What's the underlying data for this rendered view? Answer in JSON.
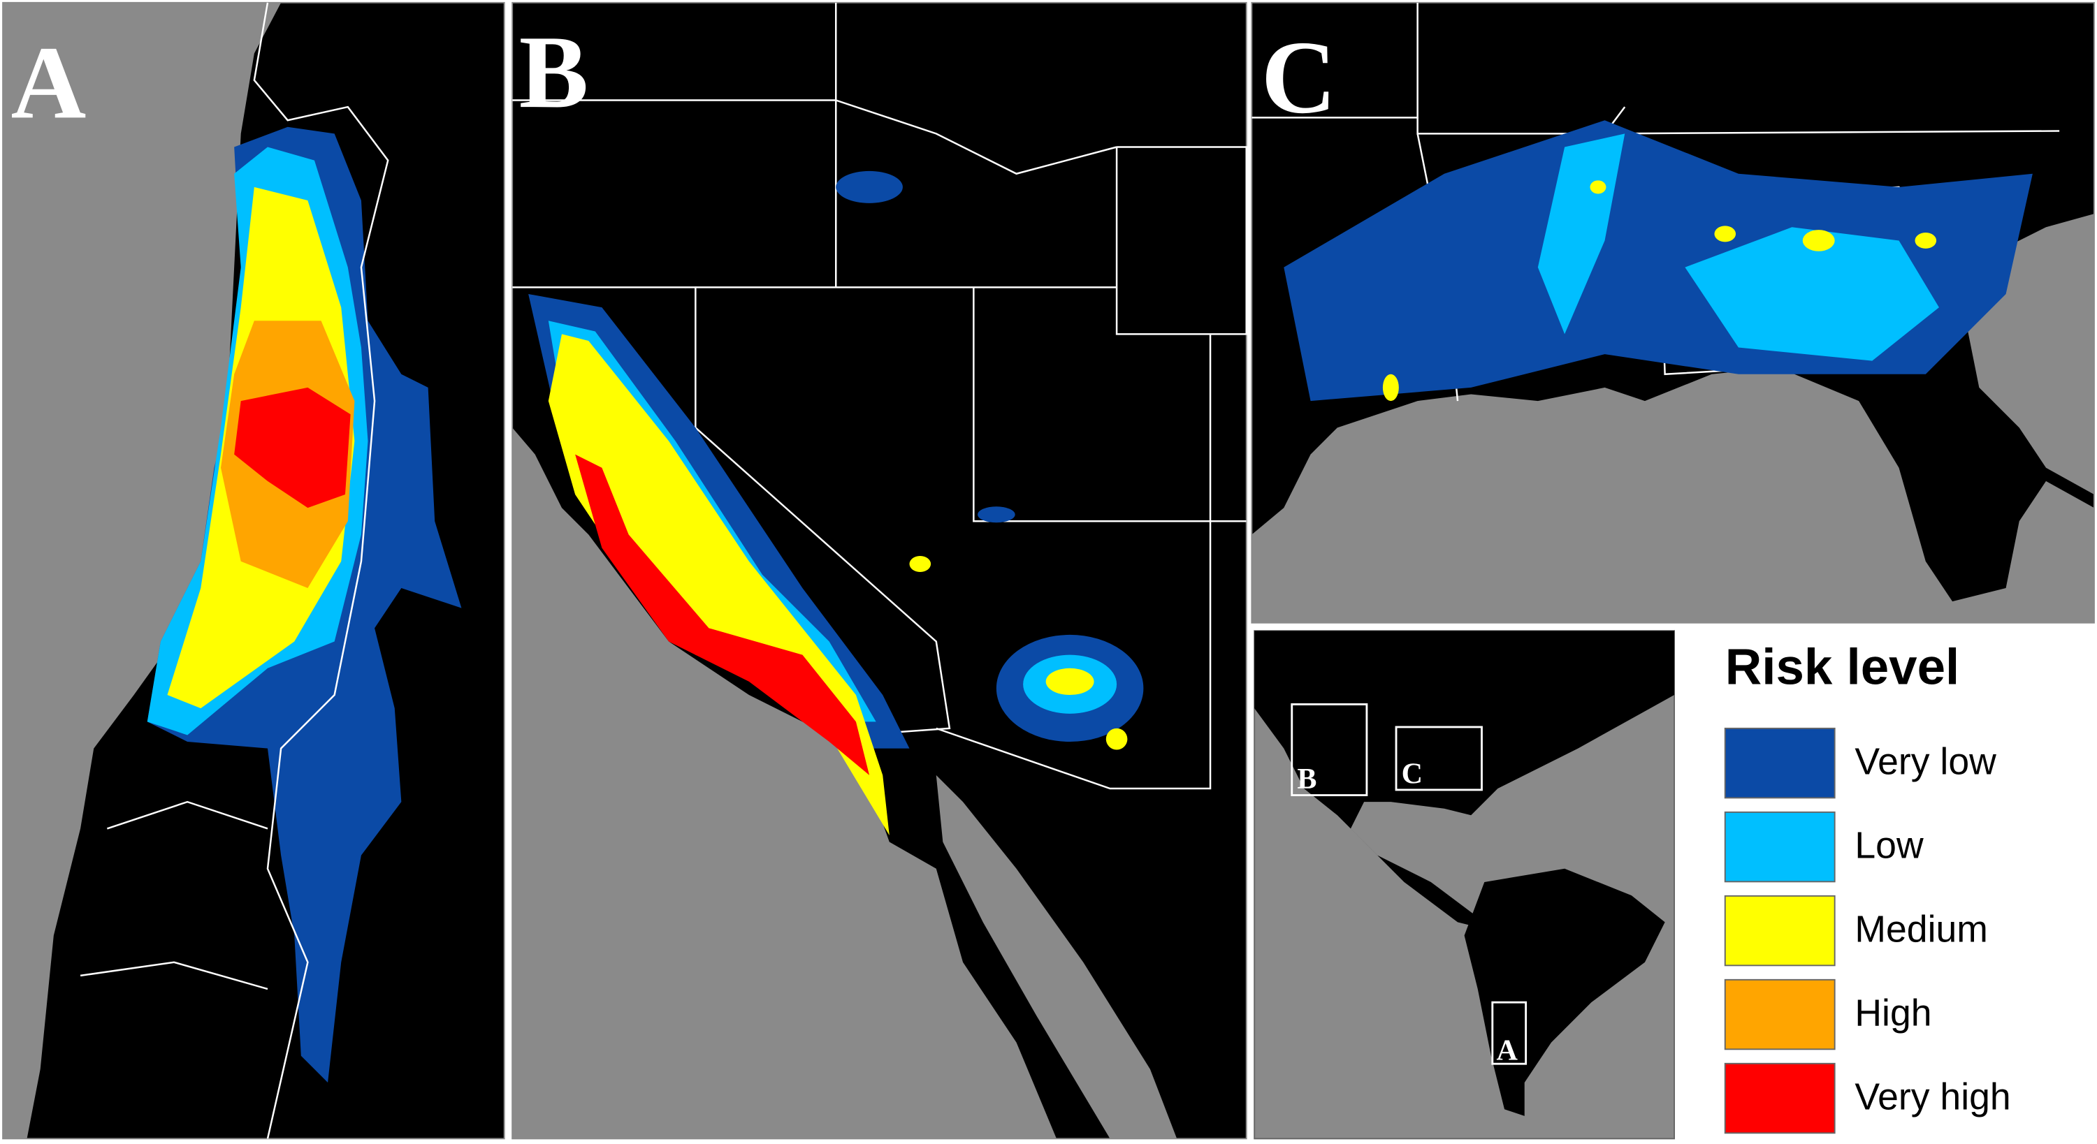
{
  "panels": [
    {
      "label": "A"
    },
    {
      "label": "B"
    },
    {
      "label": "C"
    }
  ],
  "inset": {
    "boxes": [
      {
        "label": "B"
      },
      {
        "label": "C"
      },
      {
        "label": "A"
      }
    ]
  },
  "legend": {
    "title": "Risk level",
    "items": [
      {
        "label": "Very low",
        "color": "#0b4aa6"
      },
      {
        "label": "Low",
        "color": "#00bfff"
      },
      {
        "label": "Medium",
        "color": "#ffff00"
      },
      {
        "label": "High",
        "color": "#ffa500"
      },
      {
        "label": "Very high",
        "color": "#ff0000"
      }
    ]
  }
}
